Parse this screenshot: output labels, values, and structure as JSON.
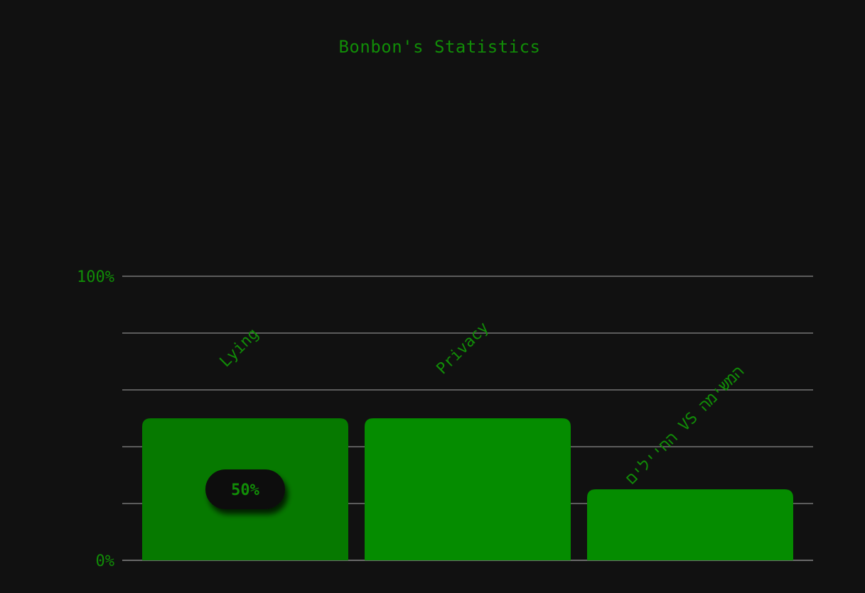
{
  "chart_data": {
    "type": "bar",
    "title": "Bonbon's Statistics",
    "categories": [
      "Lying",
      "Privacy",
      "החיילים VS המשימה"
    ],
    "values": [
      50,
      50,
      25
    ],
    "ylim": [
      0,
      100
    ],
    "y_tick_labels": [
      "0%",
      "100%"
    ],
    "grid": true,
    "hover_tooltip": {
      "category_index": 0,
      "text": "50%"
    },
    "colors": {
      "bar": "#058c00",
      "bar_hover": "#067900",
      "text": "#118c07",
      "grid": "#8a8a8a",
      "background": "#111111",
      "tooltip_bg": "#101010"
    }
  }
}
